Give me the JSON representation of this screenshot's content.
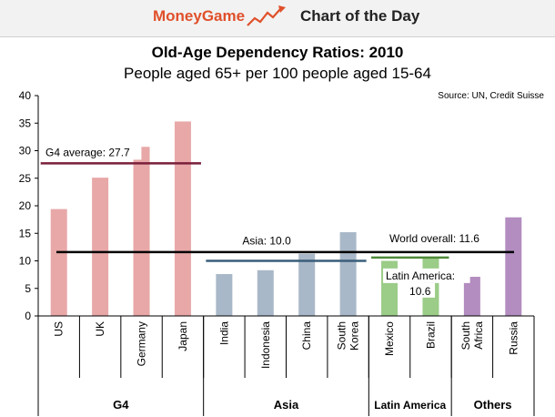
{
  "header": {
    "brand": "MoneyGame",
    "section": "Chart of the Day",
    "logo_icon": "rising-line-chart-icon"
  },
  "chart_data": {
    "type": "bar",
    "title": "Old-Age Dependency Ratios: 2010",
    "subtitle": "People aged 65+ per 100 people aged 15-64",
    "source": "Source: UN, Credit Suisse",
    "xlabel": "",
    "ylabel": "",
    "ylim": [
      0,
      40
    ],
    "yticks": [
      0,
      5,
      10,
      15,
      20,
      25,
      30,
      35,
      40
    ],
    "grid": false,
    "categories": [
      {
        "label": [
          "US"
        ],
        "value": 19.4,
        "group": "G4"
      },
      {
        "label": [
          "UK"
        ],
        "value": 25.1,
        "group": "G4"
      },
      {
        "label": [
          "Germany"
        ],
        "value": 30.7,
        "group": "G4"
      },
      {
        "label": [
          "Japan"
        ],
        "value": 35.3,
        "group": "G4"
      },
      {
        "label": [
          "India"
        ],
        "value": 7.6,
        "group": "Asia"
      },
      {
        "label": [
          "Indonesia"
        ],
        "value": 8.3,
        "group": "Asia"
      },
      {
        "label": [
          "China"
        ],
        "value": 11.3,
        "group": "Asia"
      },
      {
        "label": [
          "South",
          "Korea"
        ],
        "value": 15.2,
        "group": "Asia"
      },
      {
        "label": [
          "Mexico"
        ],
        "value": 10.0,
        "group": "Latin America"
      },
      {
        "label": [
          "Brazil"
        ],
        "value": 10.5,
        "group": "Latin America"
      },
      {
        "label": [
          "South",
          "Africa"
        ],
        "value": 7.1,
        "group": "Others"
      },
      {
        "label": [
          "Russia"
        ],
        "value": 17.9,
        "group": "Others"
      }
    ],
    "groups": [
      {
        "name": "G4",
        "color": "#e8a8a8"
      },
      {
        "name": "Asia",
        "color": "#a9b8c8"
      },
      {
        "name": "Latin America",
        "color": "#9bcc88"
      },
      {
        "name": "Others",
        "color": "#b38cc0"
      }
    ],
    "reference_lines": [
      {
        "label": "G4 average: 27.7",
        "value": 27.7,
        "from": 0,
        "to": 3,
        "color": "#7a1f3a"
      },
      {
        "label": "Asia: 10.0",
        "value": 10.0,
        "from": 4,
        "to": 7,
        "color": "#3a5f7a"
      },
      {
        "label": "Latin America:",
        "label2": "10.6",
        "value": 10.6,
        "from": 8,
        "to": 9,
        "color": "#4f8a3a"
      },
      {
        "label": "World overall: 11.6",
        "value": 11.6,
        "from": 0,
        "to": 11,
        "color": "#000000"
      }
    ]
  }
}
